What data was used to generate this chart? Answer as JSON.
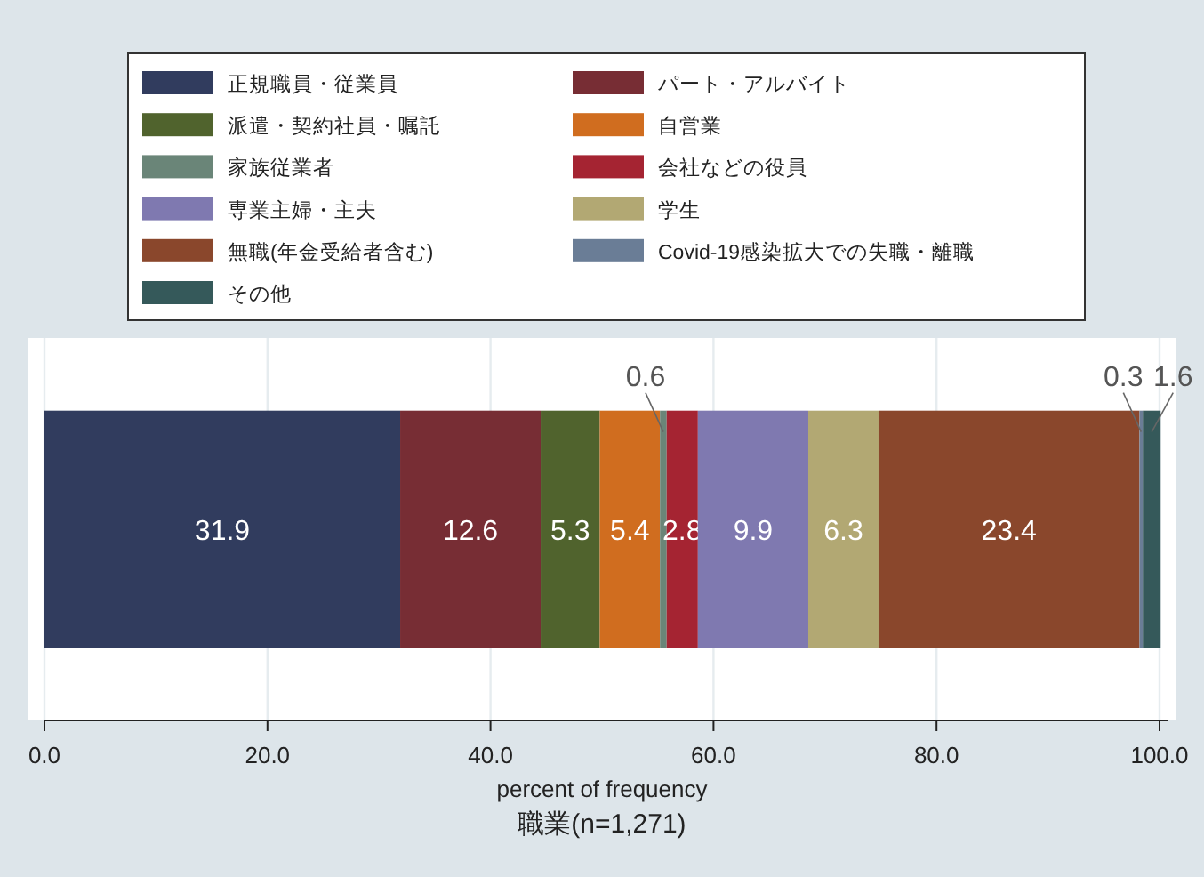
{
  "chart_data": {
    "type": "bar",
    "orientation": "horizontal",
    "stacked": true,
    "data_labels": true,
    "grid": "x",
    "legend": "top",
    "title": "職業(n=1,271)",
    "xlabel": "percent of frequency",
    "categories": [
      null
    ],
    "xlim": [
      0,
      100
    ],
    "xticks": [
      {
        "value": 0,
        "label": "0.0"
      },
      {
        "value": 20,
        "label": "20.0"
      },
      {
        "value": 40,
        "label": "40.0"
      },
      {
        "value": 60,
        "label": "60.0"
      },
      {
        "value": 80,
        "label": "80.0"
      },
      {
        "value": 100,
        "label": "100.0"
      }
    ],
    "series": [
      {
        "name": "正規職員・従業員",
        "color": "#313c5e",
        "values": [
          31.9
        ]
      },
      {
        "name": "パート・アルバイト",
        "color": "#772d34",
        "values": [
          12.6
        ]
      },
      {
        "name": "派遣・契約社員・嘱託",
        "color": "#50632d",
        "values": [
          5.3
        ]
      },
      {
        "name": "自営業",
        "color": "#d06d1f",
        "values": [
          5.4
        ]
      },
      {
        "name": "家族従業者",
        "color": "#6a8578",
        "values": [
          0.6
        ]
      },
      {
        "name": "会社などの役員",
        "color": "#a52432",
        "values": [
          2.8
        ]
      },
      {
        "name": "専業主婦・主夫",
        "color": "#7f79b0",
        "values": [
          9.9
        ]
      },
      {
        "name": "学生",
        "color": "#b2a873",
        "values": [
          6.3
        ]
      },
      {
        "name": "無職(年金受給者含む)",
        "color": "#8a472c",
        "values": [
          23.4
        ]
      },
      {
        "name": "Covid-19感染拡大での失職・離職",
        "color": "#6a7d96",
        "values": [
          0.3
        ]
      },
      {
        "name": "その他",
        "color": "#35595a",
        "values": [
          1.6
        ]
      }
    ]
  }
}
